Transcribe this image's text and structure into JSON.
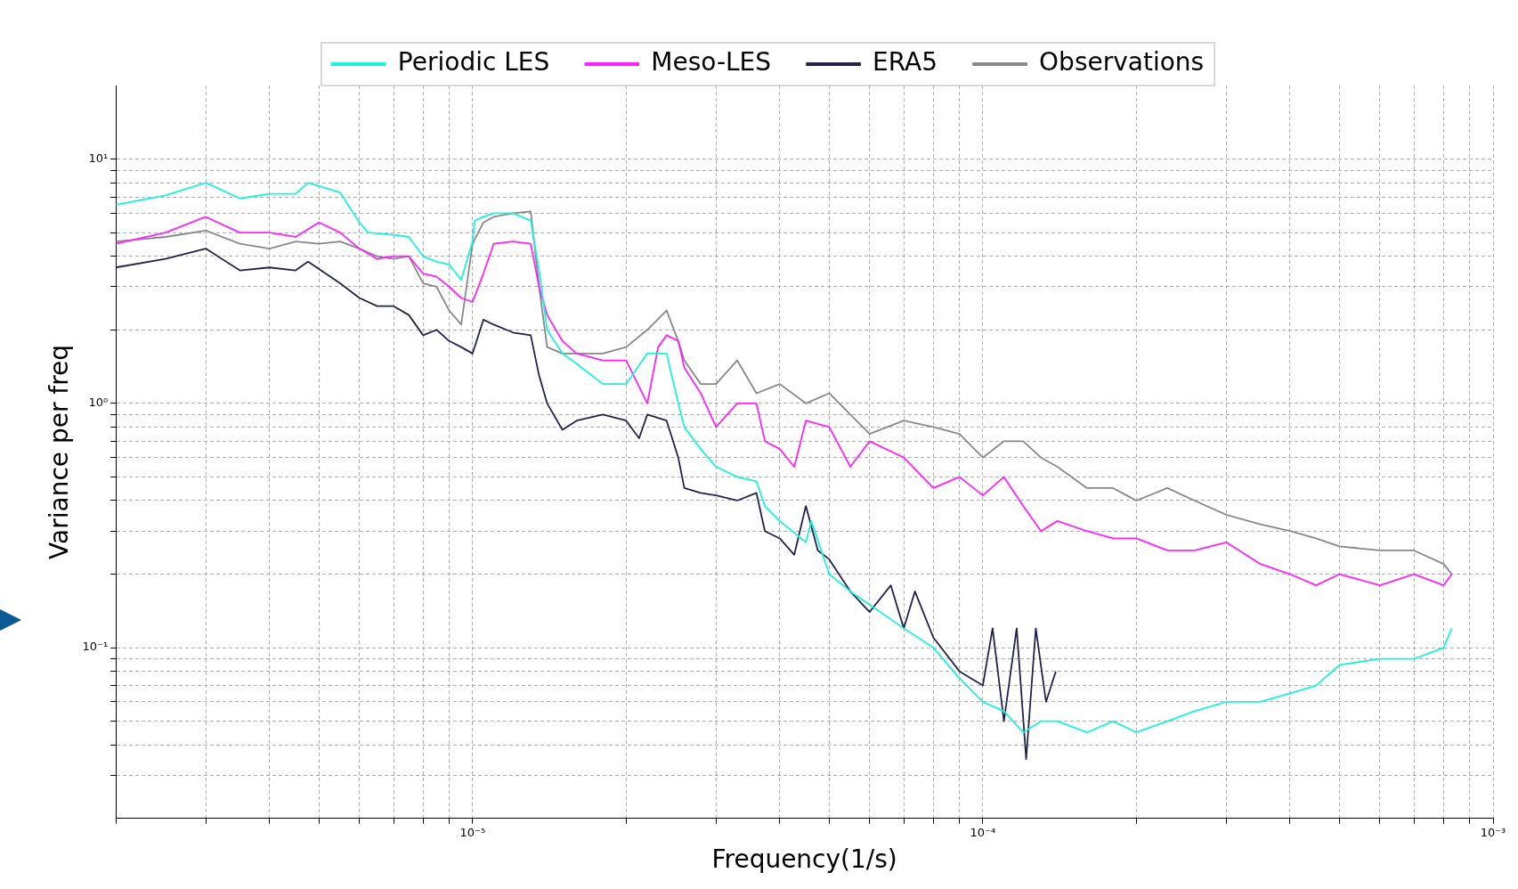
{
  "chart_data": {
    "type": "line",
    "xlabel": "Frequency(1/s)",
    "ylabel": "Variance per freq",
    "log": "xy",
    "grid": true,
    "legend": "top",
    "xlim": [
      2e-06,
      0.001
    ],
    "ylim": [
      0.02,
      20
    ],
    "xticks": [
      {
        "value": 2e-06,
        "label": null
      },
      {
        "value": 3e-06,
        "label": null
      },
      {
        "value": 4e-06,
        "label": null
      },
      {
        "value": 5e-06,
        "label": null
      },
      {
        "value": 6e-06,
        "label": null
      },
      {
        "value": 7e-06,
        "label": null
      },
      {
        "value": 8e-06,
        "label": null
      },
      {
        "value": 9e-06,
        "label": null
      },
      {
        "value": 1e-05,
        "label": "10⁻⁵"
      },
      {
        "value": 2e-05,
        "label": null
      },
      {
        "value": 3e-05,
        "label": null
      },
      {
        "value": 4e-05,
        "label": null
      },
      {
        "value": 5e-05,
        "label": null
      },
      {
        "value": 6e-05,
        "label": null
      },
      {
        "value": 7e-05,
        "label": null
      },
      {
        "value": 8e-05,
        "label": null
      },
      {
        "value": 9e-05,
        "label": null
      },
      {
        "value": 0.0001,
        "label": "10⁻⁴"
      },
      {
        "value": 0.0002,
        "label": null
      },
      {
        "value": 0.0003,
        "label": null
      },
      {
        "value": 0.0004,
        "label": null
      },
      {
        "value": 0.0005,
        "label": null
      },
      {
        "value": 0.0006,
        "label": null
      },
      {
        "value": 0.0007,
        "label": null
      },
      {
        "value": 0.0008,
        "label": null
      },
      {
        "value": 0.0009,
        "label": null
      },
      {
        "value": 0.001,
        "label": "10⁻³"
      }
    ],
    "yticks": [
      {
        "value": 0.03,
        "label": null
      },
      {
        "value": 0.04,
        "label": null
      },
      {
        "value": 0.05,
        "label": null
      },
      {
        "value": 0.06,
        "label": null
      },
      {
        "value": 0.07,
        "label": null
      },
      {
        "value": 0.08,
        "label": null
      },
      {
        "value": 0.09,
        "label": null
      },
      {
        "value": 0.1,
        "label": "10⁻¹"
      },
      {
        "value": 0.2,
        "label": null
      },
      {
        "value": 0.3,
        "label": null
      },
      {
        "value": 0.4,
        "label": null
      },
      {
        "value": 0.5,
        "label": null
      },
      {
        "value": 0.6,
        "label": null
      },
      {
        "value": 0.7,
        "label": null
      },
      {
        "value": 0.8,
        "label": null
      },
      {
        "value": 0.9,
        "label": null
      },
      {
        "value": 1,
        "label": "10⁰"
      },
      {
        "value": 2,
        "label": null
      },
      {
        "value": 3,
        "label": null
      },
      {
        "value": 4,
        "label": null
      },
      {
        "value": 5,
        "label": null
      },
      {
        "value": 6,
        "label": null
      },
      {
        "value": 7,
        "label": null
      },
      {
        "value": 8,
        "label": null
      },
      {
        "value": 9,
        "label": null
      },
      {
        "value": 10,
        "label": "10¹"
      }
    ],
    "series": [
      {
        "name": "Periodic LES",
        "color": "#1df2da",
        "x": [
          2e-06,
          2.5e-06,
          3e-06,
          3.5e-06,
          4e-06,
          4.5e-06,
          4.76e-06,
          5.5e-06,
          6e-06,
          6.24e-06,
          7e-06,
          7.5e-06,
          8e-06,
          8.5e-06,
          9e-06,
          9.5e-06,
          1e-05,
          1.01e-05,
          1.05e-05,
          1.1e-05,
          1.2e-05,
          1.3e-05,
          1.35e-05,
          1.4e-05,
          1.5e-05,
          1.6e-05,
          1.8e-05,
          2e-05,
          2.2e-05,
          2.4e-05,
          2.53e-05,
          2.6e-05,
          2.8e-05,
          3e-05,
          3.3e-05,
          3.6e-05,
          3.74e-05,
          4e-05,
          4.5e-05,
          4.61e-05,
          5e-05,
          5.5e-05,
          6e-05,
          7e-05,
          8e-05,
          9e-05,
          0.0001,
          0.00011,
          0.00012,
          0.00013,
          0.00014,
          0.00016,
          0.00018,
          0.0002,
          0.00023,
          0.00026,
          0.0003,
          0.00035,
          0.0004,
          0.00045,
          0.0005,
          0.0006,
          0.0007,
          0.0008,
          0.00083
        ],
        "values": [
          6.5,
          7.1,
          8,
          6.9,
          7.2,
          7.2,
          8,
          7.3,
          5.5,
          5,
          4.9,
          4.8,
          4,
          3.8,
          3.7,
          3.2,
          4.6,
          5.6,
          5.8,
          6,
          6,
          5.6,
          3.5,
          2,
          1.6,
          1.45,
          1.2,
          1.2,
          1.6,
          1.6,
          1,
          0.8,
          0.65,
          0.55,
          0.5,
          0.48,
          0.38,
          0.33,
          0.27,
          0.33,
          0.2,
          0.17,
          0.15,
          0.12,
          0.1,
          0.075,
          0.06,
          0.055,
          0.045,
          0.05,
          0.05,
          0.045,
          0.05,
          0.045,
          0.05,
          0.055,
          0.06,
          0.06,
          0.065,
          0.07,
          0.085,
          0.09,
          0.09,
          0.1,
          0.12
        ]
      },
      {
        "name": "Meso-LES",
        "color": "#ff22ff",
        "x": [
          2e-06,
          2.5e-06,
          3e-06,
          3.5e-06,
          4e-06,
          4.5e-06,
          5e-06,
          5.5e-06,
          6e-06,
          6.5e-06,
          7e-06,
          7.5e-06,
          8e-06,
          8.5e-06,
          9e-06,
          9.5e-06,
          1e-05,
          1.05e-05,
          1.1e-05,
          1.2e-05,
          1.3e-05,
          1.35e-05,
          1.4e-05,
          1.5e-05,
          1.6e-05,
          1.8e-05,
          2e-05,
          2.2e-05,
          2.31e-05,
          2.4e-05,
          2.53e-05,
          2.6e-05,
          2.8e-05,
          3e-05,
          3.3e-05,
          3.6e-05,
          3.74e-05,
          4e-05,
          4.27e-05,
          4.5e-05,
          5e-05,
          5.5e-05,
          6e-05,
          7e-05,
          8e-05,
          9e-05,
          0.0001,
          0.00011,
          0.00012,
          0.00013,
          0.00014,
          0.00016,
          0.00018,
          0.0002,
          0.00023,
          0.00026,
          0.0003,
          0.00035,
          0.0004,
          0.00045,
          0.0005,
          0.0006,
          0.0007,
          0.0008,
          0.00083
        ],
        "values": [
          4.5,
          5,
          5.8,
          5,
          5,
          4.8,
          5.5,
          5,
          4.3,
          3.9,
          4,
          4,
          3.4,
          3.3,
          3,
          2.7,
          2.6,
          3.4,
          4.5,
          4.6,
          4.5,
          3,
          2.3,
          1.8,
          1.6,
          1.5,
          1.5,
          1,
          1.7,
          1.9,
          1.8,
          1.4,
          1.1,
          0.8,
          1,
          1,
          0.7,
          0.65,
          0.55,
          0.85,
          0.8,
          0.55,
          0.7,
          0.6,
          0.45,
          0.5,
          0.42,
          0.5,
          0.38,
          0.3,
          0.33,
          0.3,
          0.28,
          0.28,
          0.25,
          0.25,
          0.27,
          0.22,
          0.2,
          0.18,
          0.2,
          0.18,
          0.2,
          0.18,
          0.2
        ]
      },
      {
        "name": "ERA5",
        "color": "#22224a",
        "x": [
          2e-06,
          2.5e-06,
          3e-06,
          3.5e-06,
          4e-06,
          4.5e-06,
          4.76e-06,
          5.5e-06,
          6e-06,
          6.5e-06,
          7e-06,
          7.5e-06,
          8e-06,
          8.5e-06,
          9e-06,
          9.5e-06,
          1e-05,
          1.05e-05,
          1.1e-05,
          1.2e-05,
          1.3e-05,
          1.35e-05,
          1.4e-05,
          1.5e-05,
          1.6e-05,
          1.8e-05,
          2e-05,
          2.12e-05,
          2.2e-05,
          2.4e-05,
          2.53e-05,
          2.6e-05,
          2.8e-05,
          3e-05,
          3.3e-05,
          3.6e-05,
          3.74e-05,
          4e-05,
          4.27e-05,
          4.5e-05,
          4.75e-05,
          5e-05,
          5.5e-05,
          6e-05,
          6.6e-05,
          7e-05,
          7.36e-05,
          8e-05,
          9e-05,
          0.0001,
          0.0001045,
          0.00011,
          0.0001165,
          0.0001216,
          0.000127,
          0.000133,
          0.000139
        ],
        "values": [
          3.6,
          3.9,
          4.3,
          3.5,
          3.6,
          3.5,
          3.8,
          3.1,
          2.7,
          2.5,
          2.5,
          2.3,
          1.9,
          2,
          1.8,
          1.7,
          1.6,
          2.2,
          2.1,
          1.95,
          1.9,
          1.3,
          1,
          0.78,
          0.85,
          0.9,
          0.85,
          0.72,
          0.9,
          0.85,
          0.6,
          0.45,
          0.43,
          0.42,
          0.4,
          0.43,
          0.3,
          0.28,
          0.24,
          0.38,
          0.25,
          0.23,
          0.17,
          0.14,
          0.18,
          0.12,
          0.17,
          0.11,
          0.08,
          0.07,
          0.12,
          0.05,
          0.12,
          0.035,
          0.12,
          0.06,
          0.08
        ]
      },
      {
        "name": "Observations",
        "color": "#888888",
        "x": [
          2e-06,
          2.5e-06,
          3e-06,
          3.5e-06,
          4e-06,
          4.5e-06,
          5e-06,
          5.5e-06,
          6e-06,
          6.5e-06,
          7e-06,
          7.5e-06,
          8e-06,
          8.5e-06,
          9e-06,
          9.5e-06,
          1e-05,
          1.05e-05,
          1.1e-05,
          1.2e-05,
          1.3e-05,
          1.35e-05,
          1.4e-05,
          1.5e-05,
          1.6e-05,
          1.8e-05,
          2e-05,
          2.2e-05,
          2.4e-05,
          2.53e-05,
          2.6e-05,
          2.8e-05,
          3e-05,
          3.3e-05,
          3.6e-05,
          4e-05,
          4.5e-05,
          5e-05,
          5.5e-05,
          6e-05,
          7e-05,
          8e-05,
          9e-05,
          0.0001,
          0.00011,
          0.00012,
          0.00013,
          0.00014,
          0.00016,
          0.00018,
          0.0002,
          0.00023,
          0.00026,
          0.0003,
          0.00035,
          0.0004,
          0.00045,
          0.0005,
          0.0006,
          0.0007,
          0.0008,
          0.00083
        ],
        "values": [
          4.6,
          4.8,
          5.1,
          4.5,
          4.3,
          4.6,
          4.5,
          4.6,
          4.3,
          4,
          3.9,
          4,
          3.1,
          3,
          2.4,
          2.1,
          4.5,
          5.5,
          5.8,
          6,
          6.1,
          3,
          1.7,
          1.6,
          1.6,
          1.6,
          1.7,
          2,
          2.4,
          1.8,
          1.5,
          1.2,
          1.2,
          1.5,
          1.1,
          1.2,
          1,
          1.1,
          0.9,
          0.75,
          0.85,
          0.8,
          0.75,
          0.6,
          0.7,
          0.7,
          0.6,
          0.55,
          0.45,
          0.45,
          0.4,
          0.45,
          0.4,
          0.35,
          0.32,
          0.3,
          0.28,
          0.26,
          0.25,
          0.25,
          0.22,
          0.2
        ]
      }
    ]
  }
}
